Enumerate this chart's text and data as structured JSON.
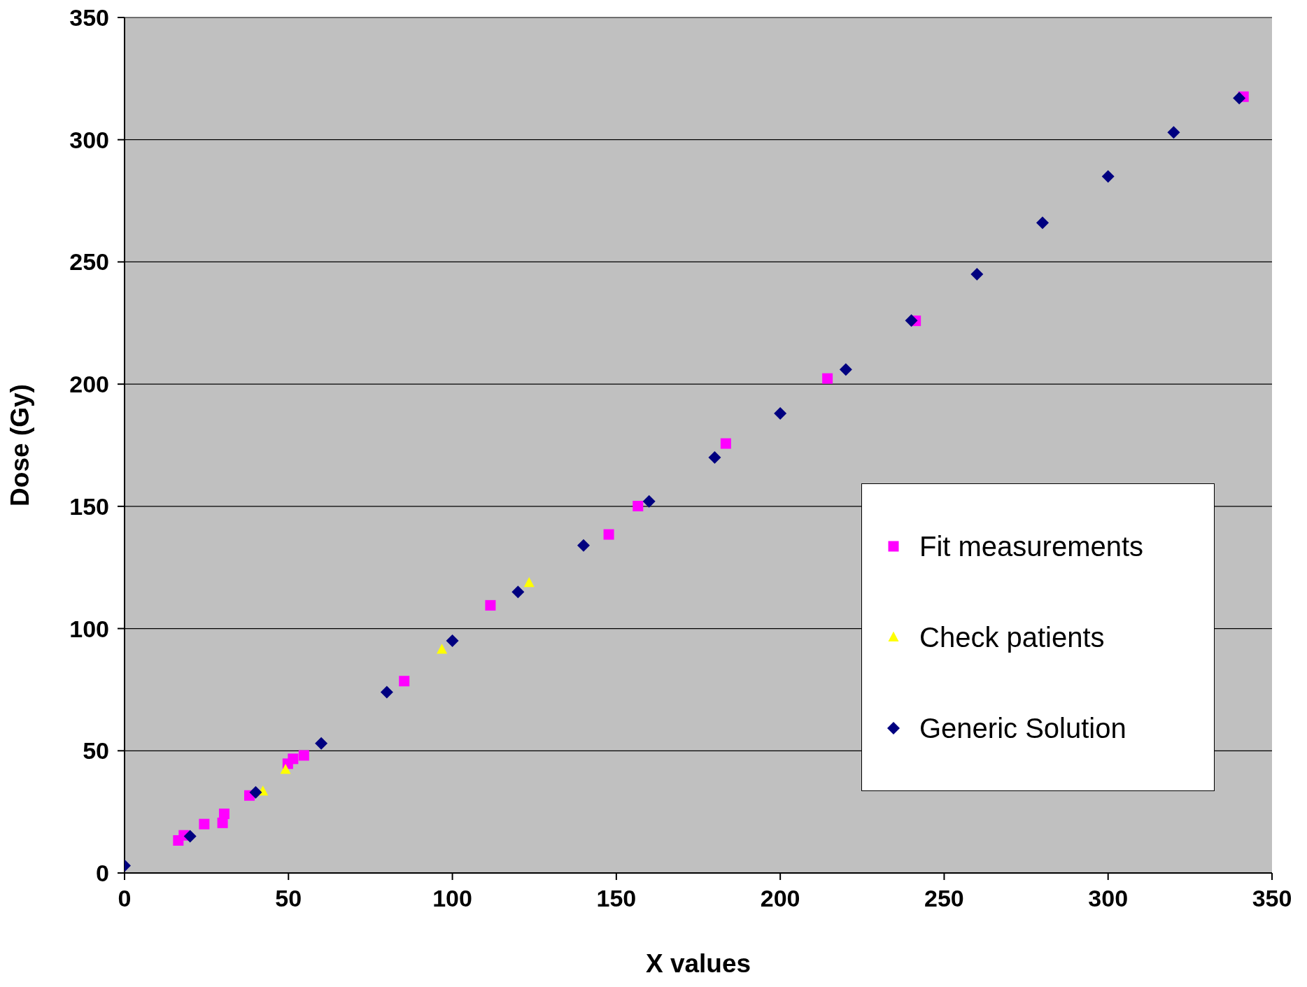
{
  "chart_data": {
    "type": "scatter",
    "xlabel": "X values",
    "ylabel": "Dose (Gy)",
    "xlim": [
      0,
      350
    ],
    "ylim": [
      0,
      350
    ],
    "xticks": [
      0,
      50,
      100,
      150,
      200,
      250,
      300,
      350
    ],
    "yticks": [
      0,
      50,
      100,
      150,
      200,
      250,
      300,
      350
    ],
    "grid": "y",
    "legend": "right",
    "series": [
      {
        "name": "Fit measurements",
        "color": "#ff00ff",
        "marker": "square",
        "x": [
          16.4,
          18.1,
          24.3,
          29.9,
          30.4,
          38.1,
          49.8,
          51.4,
          54.7,
          85.3,
          111.6,
          147.7,
          156.6,
          183.4,
          214.4,
          241.3,
          341.3
        ],
        "values": [
          13.3,
          15.4,
          20,
          20.5,
          24.2,
          31.7,
          44.7,
          46.7,
          48.1,
          78.5,
          109.5,
          138.5,
          150.1,
          175.7,
          202.3,
          225.9,
          317.6
        ]
      },
      {
        "name": "Check patients",
        "color": "#ffff00",
        "marker": "triangle",
        "x": [
          42.2,
          49.1,
          96.8,
          123.4
        ],
        "values": [
          33.4,
          42.3,
          91.4,
          118.7
        ]
      },
      {
        "name": "Generic Solution",
        "color": "#000080",
        "marker": "diamond",
        "x": [
          0,
          20,
          40,
          60,
          80,
          100,
          120,
          140,
          160,
          180,
          200,
          220,
          240,
          260,
          280,
          300,
          320,
          340
        ],
        "values": [
          3,
          15,
          33,
          53,
          74,
          95,
          115,
          134,
          152,
          170,
          188,
          206,
          226,
          245,
          266,
          285,
          303,
          317
        ]
      }
    ]
  }
}
